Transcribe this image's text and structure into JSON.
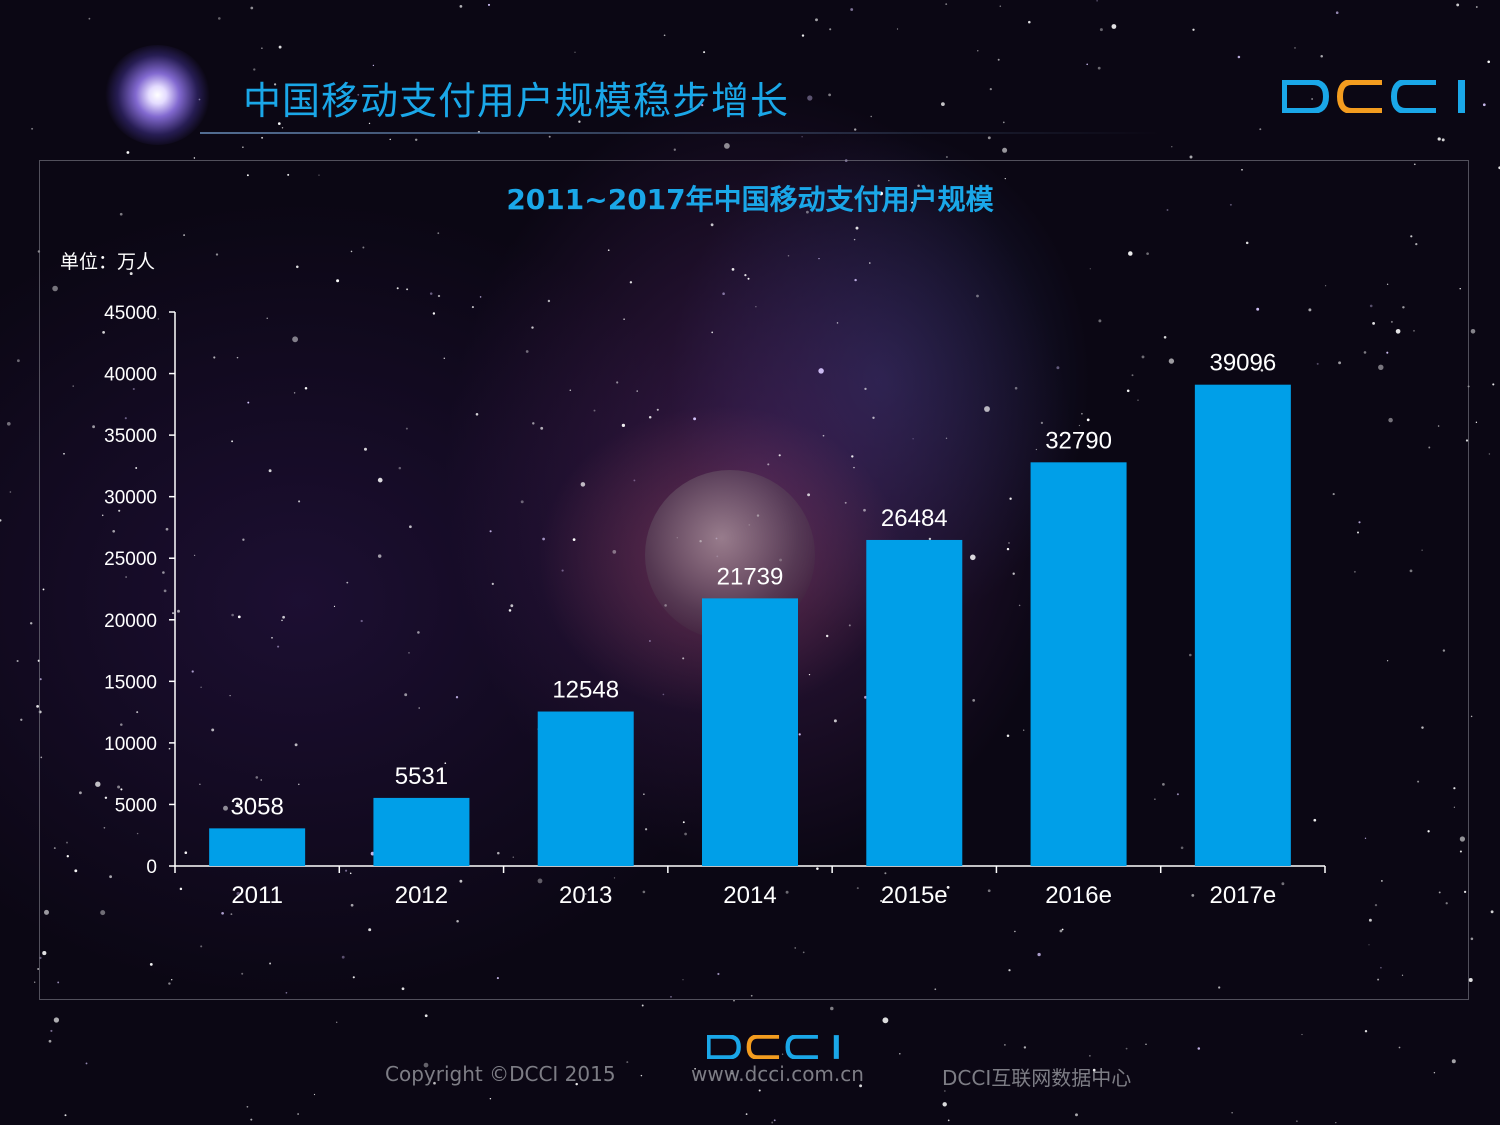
{
  "page": {
    "title": "中国移动支付用户规模稳步增长",
    "logo_text": "DCCI",
    "footer": {
      "copyright": "Copyright ©DCCI 2015",
      "website": "www.dcci.com.cn",
      "org": "DCCI互联网数据中心"
    }
  },
  "colors": {
    "accent": "#1aa7e8",
    "bar": "#009fe8",
    "logo_orange": "#f39c1f",
    "text": "#ffffff"
  },
  "chart_data": {
    "type": "bar",
    "title": "2011~2017年中国移动支付用户规模",
    "unit_label": "单位：万人",
    "categories": [
      "2011",
      "2012",
      "2013",
      "2014",
      "2015e",
      "2016e",
      "2017e"
    ],
    "values": [
      3058,
      5531,
      12548,
      21739,
      26484,
      32790,
      39096
    ],
    "ylim": [
      0,
      45000
    ],
    "yticks": [
      0,
      5000,
      10000,
      15000,
      20000,
      25000,
      30000,
      35000,
      40000,
      45000
    ],
    "grid": false,
    "legend": "none"
  }
}
